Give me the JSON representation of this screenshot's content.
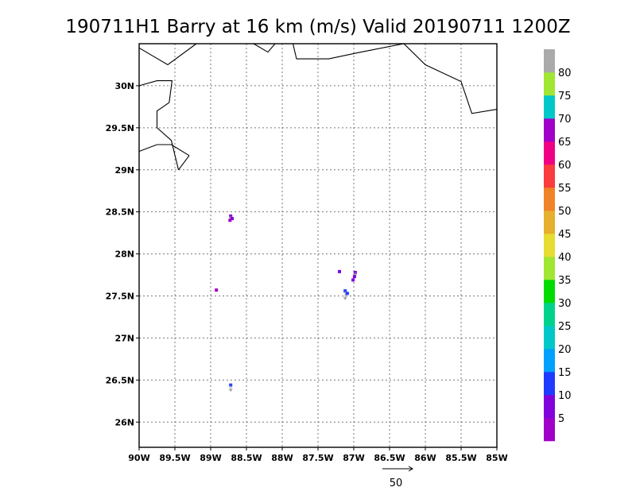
{
  "title": "190711H1 Barry at 16 km (m/s) Valid 20190711  1200Z",
  "map": {
    "lon_range": [
      -90,
      -85
    ],
    "lat_range": [
      25.7,
      30.5
    ],
    "x_ticks": [
      {
        "lon": -90,
        "label": "90W"
      },
      {
        "lon": -89.5,
        "label": "89.5W"
      },
      {
        "lon": -89,
        "label": "89W"
      },
      {
        "lon": -88.5,
        "label": "88.5W"
      },
      {
        "lon": -88,
        "label": "88W"
      },
      {
        "lon": -87.5,
        "label": "87.5W"
      },
      {
        "lon": -87,
        "label": "87W"
      },
      {
        "lon": -86.5,
        "label": "86.5W"
      },
      {
        "lon": -86,
        "label": "86W"
      },
      {
        "lon": -85.5,
        "label": "85.5W"
      },
      {
        "lon": -85,
        "label": "85W"
      }
    ],
    "y_ticks": [
      {
        "lat": 30,
        "label": "30N"
      },
      {
        "lat": 29.5,
        "label": "29.5N"
      },
      {
        "lat": 29,
        "label": "29N"
      },
      {
        "lat": 28.5,
        "label": "28.5N"
      },
      {
        "lat": 28,
        "label": "28N"
      },
      {
        "lat": 27.5,
        "label": "27.5N"
      },
      {
        "lat": 27,
        "label": "27N"
      },
      {
        "lat": 26.5,
        "label": "26.5N"
      },
      {
        "lat": 26,
        "label": "26N"
      }
    ],
    "grid": true
  },
  "coastlines": [
    [
      [
        -90,
        30.45
      ],
      [
        -89.6,
        30.25
      ],
      [
        -89.2,
        30.5
      ]
    ],
    [
      [
        -88.4,
        30.5
      ],
      [
        -88.2,
        30.4
      ],
      [
        -88.1,
        30.5
      ]
    ],
    [
      [
        -87.85,
        30.5
      ],
      [
        -87.8,
        30.32
      ],
      [
        -87.35,
        30.32
      ],
      [
        -86.9,
        30.4
      ],
      [
        -86.3,
        30.5
      ],
      [
        -86,
        30.25
      ],
      [
        -85.5,
        30.05
      ],
      [
        -85.35,
        29.67
      ],
      [
        -85,
        29.72
      ]
    ],
    [
      [
        -90,
        30
      ],
      [
        -89.75,
        30.06
      ],
      [
        -89.54,
        30.06
      ],
      [
        -89.58,
        29.8
      ],
      [
        -89.75,
        29.7
      ],
      [
        -89.75,
        29.5
      ],
      [
        -89.55,
        29.35
      ],
      [
        -89.45,
        29
      ]
    ],
    [
      [
        -89.45,
        29
      ],
      [
        -89.3,
        29.17
      ]
    ],
    [
      [
        -89.3,
        29.17
      ],
      [
        -89.55,
        29.3
      ],
      [
        -89.75,
        29.3
      ],
      [
        -90,
        29.22
      ]
    ]
  ],
  "wind_obs": [
    {
      "lon": -88.72,
      "lat": 28.45,
      "speed": 9,
      "u": 0,
      "v": -5
    },
    {
      "lon": -88.7,
      "lat": 28.42,
      "speed": 7
    },
    {
      "lon": -88.73,
      "lat": 28.4,
      "speed": 4
    },
    {
      "lon": -87.2,
      "lat": 27.79,
      "speed": 5
    },
    {
      "lon": -86.98,
      "lat": 27.78,
      "speed": 8,
      "u": 0,
      "v": -6
    },
    {
      "lon": -86.99,
      "lat": 27.73,
      "speed": 6
    },
    {
      "lon": -87.01,
      "lat": 27.69,
      "speed": 5
    },
    {
      "lon": -87.12,
      "lat": 27.56,
      "speed": 13,
      "u": 0,
      "v": -14
    },
    {
      "lon": -87.09,
      "lat": 27.53,
      "speed": 14
    },
    {
      "lon": -88.92,
      "lat": 27.57,
      "speed": 3
    },
    {
      "lon": -88.72,
      "lat": 26.44,
      "speed": 11,
      "u": 0,
      "v": -10
    }
  ],
  "colorbar": {
    "colors": [
      "#a000c8",
      "#8200dc",
      "#1e3cff",
      "#00a0ff",
      "#00c8c8",
      "#00d28c",
      "#00dc00",
      "#a0e632",
      "#e6dc32",
      "#e6af2d",
      "#f08228",
      "#fa3c3c",
      "#f00082",
      "#a000c8",
      "#00c8c8",
      "#a0e632",
      "#aaaaaa"
    ],
    "labels": [
      "5",
      "10",
      "15",
      "20",
      "25",
      "30",
      "35",
      "40",
      "45",
      "50",
      "55",
      "60",
      "65",
      "70",
      "75",
      "80"
    ]
  },
  "reference_vector": {
    "label": "50",
    "speed": 50
  }
}
